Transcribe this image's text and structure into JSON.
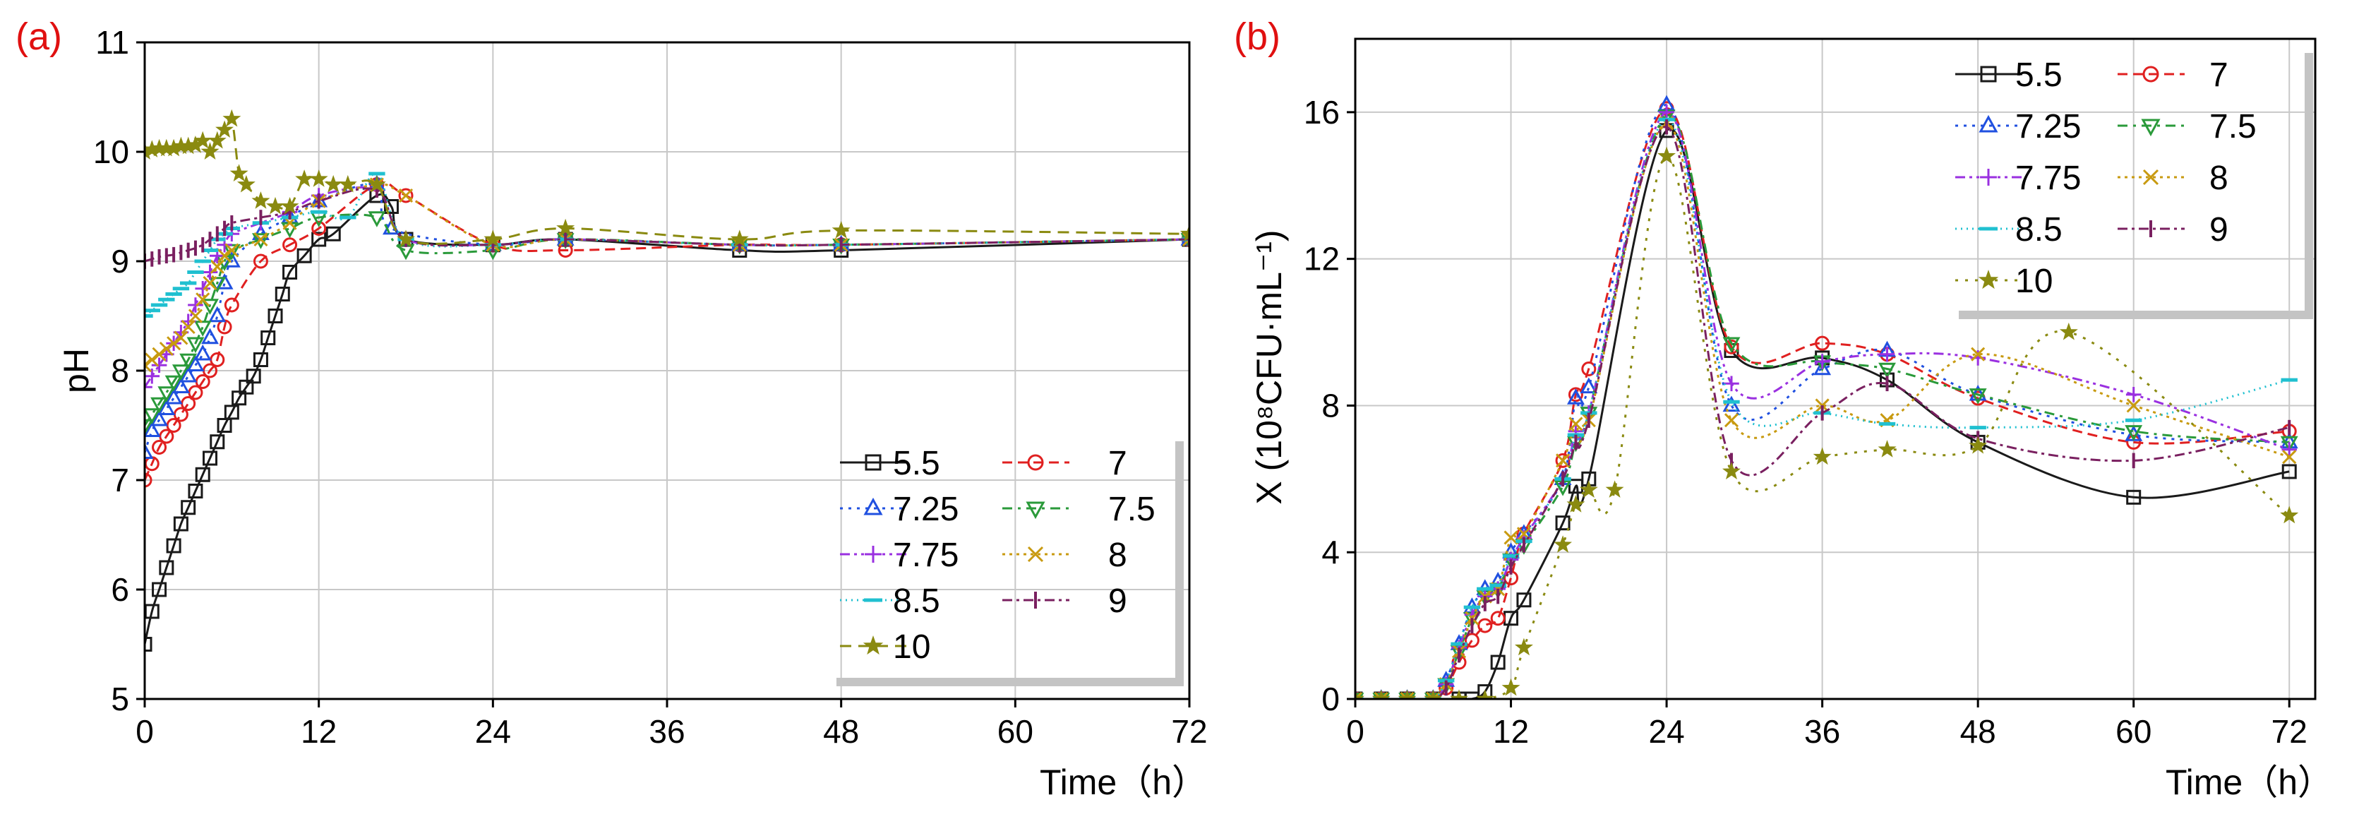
{
  "chart_data": [
    {
      "type": "line",
      "panel": "(a)",
      "xlabel": "Time（h）",
      "ylabel": "pH",
      "xlim": [
        0,
        72
      ],
      "ylim": [
        5,
        11
      ],
      "xticks": [
        0,
        12,
        24,
        36,
        48,
        60,
        72
      ],
      "yticks": [
        5,
        6,
        7,
        8,
        9,
        10,
        11
      ],
      "grid": true,
      "legend_position": "lower-right",
      "series": [
        {
          "name": "5.5",
          "color": "#1a1a1a",
          "marker": "square",
          "dash": "",
          "x": [
            0,
            0.5,
            1,
            1.5,
            2,
            2.5,
            3,
            3.5,
            4,
            4.5,
            5,
            5.5,
            6,
            6.5,
            7,
            7.5,
            8,
            8.5,
            9,
            9.5,
            10,
            11,
            12,
            13,
            16,
            17,
            18,
            24,
            29,
            41,
            48,
            72
          ],
          "y": [
            5.5,
            5.8,
            6.0,
            6.2,
            6.4,
            6.6,
            6.75,
            6.9,
            7.05,
            7.2,
            7.35,
            7.5,
            7.62,
            7.75,
            7.85,
            7.95,
            8.1,
            8.3,
            8.5,
            8.7,
            8.9,
            9.05,
            9.2,
            9.25,
            9.6,
            9.5,
            9.2,
            9.15,
            9.2,
            9.1,
            9.1,
            9.2
          ]
        },
        {
          "name": "7",
          "color": "#e02020",
          "marker": "circle",
          "dash": "14,8",
          "x": [
            0,
            0.5,
            1,
            1.5,
            2,
            2.5,
            3,
            3.5,
            4,
            4.5,
            5,
            5.5,
            6,
            8,
            10,
            12,
            16,
            18,
            24,
            29,
            41,
            48,
            72
          ],
          "y": [
            7.0,
            7.15,
            7.3,
            7.4,
            7.5,
            7.6,
            7.7,
            7.8,
            7.9,
            8.0,
            8.1,
            8.4,
            8.6,
            9.0,
            9.15,
            9.3,
            9.7,
            9.6,
            9.15,
            9.1,
            9.15,
            9.15,
            9.2
          ]
        },
        {
          "name": "7.25",
          "color": "#2050e0",
          "marker": "triangle",
          "dash": "4,8",
          "x": [
            0,
            0.5,
            1,
            1.5,
            2,
            2.5,
            3,
            3.5,
            4,
            4.5,
            5,
            5.5,
            6,
            8,
            10,
            12,
            16,
            17,
            24,
            29,
            41,
            48,
            72
          ],
          "y": [
            7.25,
            7.45,
            7.55,
            7.65,
            7.75,
            7.85,
            7.95,
            8.05,
            8.15,
            8.3,
            8.5,
            8.8,
            9.0,
            9.25,
            9.4,
            9.55,
            9.7,
            9.3,
            9.15,
            9.2,
            9.15,
            9.15,
            9.2
          ]
        },
        {
          "name": "7.5",
          "color": "#2a9a3a",
          "marker": "triangle-down",
          "dash": "14,8,4,8",
          "x": [
            0,
            0.5,
            1,
            1.5,
            2,
            2.5,
            3,
            3.5,
            4,
            4.5,
            5,
            5.5,
            6,
            8,
            10,
            12,
            16,
            18,
            24,
            29,
            41,
            48,
            72
          ],
          "y": [
            7.5,
            7.6,
            7.7,
            7.8,
            7.9,
            8.0,
            8.1,
            8.25,
            8.4,
            8.6,
            8.8,
            9.0,
            9.1,
            9.2,
            9.3,
            9.4,
            9.4,
            9.1,
            9.1,
            9.2,
            9.15,
            9.15,
            9.2
          ]
        },
        {
          "name": "7.75",
          "color": "#9a30e0",
          "marker": "plus",
          "dash": "14,6,4,6,4,6",
          "x": [
            0,
            0.5,
            1,
            1.5,
            2,
            2.5,
            3,
            3.5,
            4,
            4.5,
            5,
            5.5,
            6,
            8,
            10,
            12,
            16,
            18,
            24,
            29,
            41,
            48,
            72
          ],
          "y": [
            7.85,
            7.95,
            8.05,
            8.15,
            8.25,
            8.35,
            8.45,
            8.6,
            8.75,
            8.9,
            9.05,
            9.15,
            9.25,
            9.35,
            9.45,
            9.6,
            9.65,
            9.2,
            9.15,
            9.2,
            9.15,
            9.15,
            9.2
          ]
        },
        {
          "name": "8",
          "color": "#c89a10",
          "marker": "x",
          "dash": "4,6",
          "x": [
            0,
            0.5,
            1,
            1.5,
            2,
            2.5,
            3,
            3.5,
            4,
            4.5,
            5,
            5.5,
            6,
            8,
            10,
            12,
            16,
            18,
            24,
            29,
            41,
            48,
            72
          ],
          "y": [
            8.05,
            8.1,
            8.15,
            8.2,
            8.25,
            8.3,
            8.4,
            8.5,
            8.65,
            8.8,
            8.95,
            9.05,
            9.1,
            9.2,
            9.35,
            9.55,
            9.7,
            9.6,
            9.15,
            9.2,
            9.15,
            9.15,
            9.2
          ]
        },
        {
          "name": "8.5",
          "color": "#20c0d0",
          "marker": "dash",
          "dash": "2,6",
          "x": [
            0,
            0.5,
            1,
            1.5,
            2,
            2.5,
            3,
            3.5,
            4,
            4.5,
            5,
            5.5,
            6,
            8,
            10,
            12,
            14,
            16,
            18,
            24,
            29,
            41,
            48,
            72
          ],
          "y": [
            8.5,
            8.55,
            8.6,
            8.65,
            8.7,
            8.75,
            8.8,
            8.9,
            9.0,
            9.1,
            9.2,
            9.25,
            9.3,
            9.35,
            9.4,
            9.45,
            9.4,
            9.8,
            9.2,
            9.15,
            9.2,
            9.15,
            9.15,
            9.2
          ]
        },
        {
          "name": "9",
          "color": "#7a2060",
          "marker": "vbar",
          "dash": "14,6,4,6",
          "x": [
            0,
            0.5,
            1,
            1.5,
            2,
            2.5,
            3,
            3.5,
            4,
            4.5,
            5,
            5.5,
            6,
            8,
            10,
            12,
            16,
            18,
            24,
            29,
            41,
            48,
            72
          ],
          "y": [
            9.0,
            9.02,
            9.04,
            9.05,
            9.06,
            9.08,
            9.1,
            9.12,
            9.15,
            9.2,
            9.25,
            9.3,
            9.35,
            9.4,
            9.45,
            9.55,
            9.65,
            9.2,
            9.15,
            9.2,
            9.15,
            9.15,
            9.2
          ]
        },
        {
          "name": "10",
          "color": "#8a8a10",
          "marker": "star",
          "dash": "16,10",
          "x": [
            0,
            0.5,
            1,
            1.5,
            2,
            2.5,
            3,
            3.5,
            4,
            4.5,
            5,
            5.5,
            6,
            6.5,
            7,
            8,
            9,
            10,
            11,
            12,
            13,
            14,
            16,
            18,
            24,
            29,
            41,
            48,
            72
          ],
          "y": [
            10.0,
            10.02,
            10.03,
            10.03,
            10.03,
            10.05,
            10.05,
            10.06,
            10.1,
            10.0,
            10.1,
            10.2,
            10.3,
            9.8,
            9.7,
            9.55,
            9.5,
            9.5,
            9.75,
            9.75,
            9.7,
            9.7,
            9.7,
            9.2,
            9.2,
            9.3,
            9.2,
            9.28,
            9.25
          ]
        }
      ]
    },
    {
      "type": "line",
      "panel": "(b)",
      "xlabel": "Time（h）",
      "ylabel": "X (10⁸CFU·mL⁻¹)",
      "xlim": [
        0,
        74
      ],
      "ylim": [
        0,
        18
      ],
      "xticks": [
        0,
        12,
        24,
        36,
        48,
        60,
        72
      ],
      "yticks": [
        0,
        4,
        8,
        12,
        16
      ],
      "grid": true,
      "legend_position": "top-right",
      "series": [
        {
          "name": "5.5",
          "color": "#1a1a1a",
          "marker": "square",
          "dash": "",
          "x": [
            0,
            2,
            4,
            6,
            8,
            9,
            10,
            11,
            12,
            13,
            16,
            17,
            18,
            24,
            29,
            36,
            41,
            48,
            60,
            72
          ],
          "y": [
            0,
            0,
            0,
            0,
            0,
            0,
            0.2,
            1.0,
            2.2,
            2.7,
            4.8,
            5.8,
            6.0,
            15.5,
            9.5,
            9.3,
            8.7,
            7.0,
            5.5,
            6.2
          ]
        },
        {
          "name": "7",
          "color": "#e02020",
          "marker": "circle",
          "dash": "14,8",
          "x": [
            0,
            2,
            4,
            6,
            7,
            8,
            9,
            10,
            11,
            12,
            13,
            16,
            17,
            18,
            24,
            29,
            36,
            41,
            48,
            60,
            72
          ],
          "y": [
            0,
            0,
            0,
            0,
            0.3,
            1.0,
            1.6,
            2.0,
            2.2,
            3.3,
            4.5,
            6.5,
            8.3,
            9.0,
            16.1,
            9.6,
            9.7,
            9.4,
            8.2,
            7.0,
            7.3
          ]
        },
        {
          "name": "7.25",
          "color": "#2050e0",
          "marker": "triangle",
          "dash": "4,8",
          "x": [
            0,
            2,
            4,
            6,
            7,
            8,
            9,
            10,
            11,
            12,
            13,
            16,
            17,
            18,
            24,
            29,
            36,
            41,
            48,
            60,
            72
          ],
          "y": [
            0,
            0,
            0,
            0,
            0.5,
            1.5,
            2.5,
            3.0,
            3.2,
            4.0,
            4.5,
            6.0,
            8.2,
            8.5,
            16.2,
            8.0,
            9.0,
            9.5,
            8.3,
            7.2,
            7.0
          ]
        },
        {
          "name": "7.5",
          "color": "#2a9a3a",
          "marker": "triangle-down",
          "dash": "14,8,4,8",
          "x": [
            0,
            2,
            4,
            6,
            7,
            8,
            9,
            10,
            11,
            12,
            13,
            16,
            17,
            18,
            24,
            29,
            36,
            41,
            48,
            60,
            72
          ],
          "y": [
            0,
            0,
            0,
            0,
            0.4,
            1.3,
            2.2,
            2.8,
            3.0,
            3.8,
            4.2,
            5.8,
            7.0,
            7.8,
            15.9,
            9.7,
            9.2,
            9.0,
            8.3,
            7.3,
            7.0
          ]
        },
        {
          "name": "7.75",
          "color": "#9a30e0",
          "marker": "plus",
          "dash": "14,6,4,6,4,6",
          "x": [
            0,
            2,
            4,
            6,
            7,
            8,
            9,
            10,
            11,
            12,
            13,
            16,
            17,
            18,
            24,
            29,
            36,
            41,
            48,
            60,
            72
          ],
          "y": [
            0,
            0,
            0,
            0,
            0.4,
            1.4,
            2.3,
            2.8,
            3.0,
            3.8,
            4.4,
            6.0,
            7.3,
            7.8,
            16.0,
            8.6,
            9.2,
            9.4,
            9.3,
            8.3,
            6.8
          ]
        },
        {
          "name": "8",
          "color": "#c89a10",
          "marker": "x",
          "dash": "4,6",
          "x": [
            0,
            2,
            4,
            6,
            7,
            8,
            9,
            10,
            11,
            12,
            13,
            16,
            17,
            18,
            24,
            29,
            36,
            41,
            48,
            60,
            72
          ],
          "y": [
            0,
            0,
            0,
            0,
            0.4,
            1.3,
            2.2,
            2.8,
            3.0,
            4.4,
            4.5,
            6.5,
            7.5,
            7.6,
            15.7,
            7.6,
            8.0,
            7.6,
            9.4,
            8.0,
            6.6
          ]
        },
        {
          "name": "8.5",
          "color": "#20c0d0",
          "marker": "dash",
          "dash": "2,6",
          "x": [
            0,
            2,
            4,
            6,
            7,
            8,
            9,
            10,
            11,
            12,
            13,
            16,
            17,
            18,
            24,
            29,
            36,
            41,
            48,
            60,
            72
          ],
          "y": [
            0,
            0,
            0,
            0,
            0.5,
            1.5,
            2.5,
            3.0,
            3.1,
            3.9,
            4.3,
            6.0,
            7.2,
            7.8,
            15.8,
            8.1,
            7.8,
            7.5,
            7.4,
            7.6,
            8.7
          ]
        },
        {
          "name": "9",
          "color": "#7a2060",
          "marker": "vbar",
          "dash": "14,6,4,6",
          "x": [
            0,
            2,
            4,
            6,
            7,
            8,
            9,
            10,
            11,
            12,
            13,
            16,
            17,
            18,
            24,
            29,
            36,
            41,
            48,
            60,
            72
          ],
          "y": [
            0,
            0,
            0,
            0,
            0.3,
            1.2,
            2.0,
            2.6,
            2.8,
            3.6,
            4.2,
            6.0,
            7.0,
            7.6,
            15.6,
            6.5,
            7.8,
            8.6,
            7.1,
            6.5,
            7.4
          ]
        },
        {
          "name": "10",
          "color": "#8a8a10",
          "marker": "star",
          "dash": "4,10",
          "x": [
            0,
            2,
            4,
            6,
            8,
            10,
            12,
            13,
            16,
            17,
            18,
            20,
            24,
            29,
            36,
            41,
            48,
            55,
            72
          ],
          "y": [
            0,
            0,
            0,
            0,
            0,
            0,
            0.3,
            1.4,
            4.2,
            5.3,
            5.7,
            5.7,
            14.8,
            6.2,
            6.6,
            6.8,
            6.9,
            10.0,
            5.0
          ]
        }
      ]
    }
  ]
}
